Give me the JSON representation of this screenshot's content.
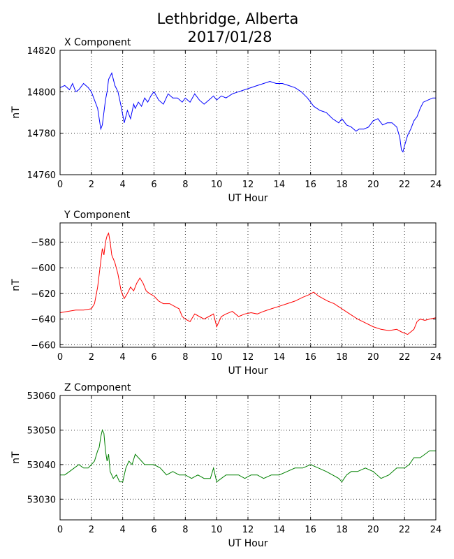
{
  "page": {
    "title_line1": "Lethbridge, Alberta",
    "title_line2": "2017/01/28"
  },
  "chart_data": [
    {
      "type": "line",
      "title": "X Component",
      "xlabel": "UT Hour",
      "ylabel": "nT",
      "xlim": [
        0,
        24
      ],
      "ylim": [
        14760,
        14820
      ],
      "xticks": [
        0,
        2,
        4,
        6,
        8,
        10,
        12,
        14,
        16,
        18,
        20,
        22,
        24
      ],
      "yticks": [
        14760,
        14780,
        14800,
        14820
      ],
      "grid": true,
      "color": "#0000ff",
      "series": [
        {
          "x": [
            0,
            0.3,
            0.6,
            0.8,
            1.0,
            1.2,
            1.5,
            1.8,
            2.0,
            2.2,
            2.4,
            2.6,
            2.7,
            2.9,
            3.0,
            3.1,
            3.3,
            3.5,
            3.7,
            3.9,
            4.1,
            4.3,
            4.5,
            4.7,
            4.8,
            5.0,
            5.2,
            5.4,
            5.6,
            5.8,
            6.0,
            6.3,
            6.6,
            6.9,
            7.2,
            7.5,
            7.8,
            8.0,
            8.3,
            8.6,
            8.9,
            9.2,
            9.5,
            9.8,
            10.0,
            10.3,
            10.6,
            11.0,
            11.4,
            11.8,
            12.2,
            12.6,
            13.0,
            13.4,
            13.8,
            14.2,
            14.6,
            15.0,
            15.4,
            15.8,
            16.2,
            16.6,
            17.0,
            17.4,
            17.8,
            18.0,
            18.3,
            18.6,
            18.9,
            19.1,
            19.4,
            19.7,
            20.0,
            20.3,
            20.6,
            20.9,
            21.2,
            21.5,
            21.7,
            21.8,
            21.9,
            22.0,
            22.2,
            22.4,
            22.6,
            22.8,
            23.0,
            23.2,
            23.5,
            23.8,
            24.0
          ],
          "y": [
            14802,
            14803,
            14801,
            14804,
            14800,
            14801,
            14804,
            14802,
            14800,
            14796,
            14792,
            14782,
            14784,
            14796,
            14800,
            14806,
            14809,
            14803,
            14800,
            14793,
            14785,
            14791,
            14787,
            14794,
            14792,
            14795,
            14793,
            14797,
            14795,
            14798,
            14800,
            14796,
            14794,
            14799,
            14797,
            14797,
            14795,
            14797,
            14795,
            14799,
            14796,
            14794,
            14796,
            14798,
            14796,
            14798,
            14797,
            14799,
            14800,
            14801,
            14802,
            14803,
            14804,
            14805,
            14804,
            14804,
            14803,
            14802,
            14800,
            14797,
            14793,
            14791,
            14790,
            14787,
            14785,
            14787,
            14784,
            14783,
            14781,
            14782,
            14782,
            14783,
            14786,
            14787,
            14784,
            14785,
            14785,
            14783,
            14778,
            14772,
            14771,
            14774,
            14779,
            14782,
            14786,
            14788,
            14792,
            14795,
            14796,
            14797,
            14797
          ]
        }
      ]
    },
    {
      "type": "line",
      "title": "Y Component",
      "xlabel": "UT Hour",
      "ylabel": "nT",
      "xlim": [
        0,
        24
      ],
      "ylim": [
        -662,
        -565
      ],
      "xticks": [
        0,
        2,
        4,
        6,
        8,
        10,
        12,
        14,
        16,
        18,
        20,
        22,
        24
      ],
      "yticks": [
        -660,
        -640,
        -620,
        -600,
        -580
      ],
      "grid": true,
      "color": "#ff0000",
      "series": [
        {
          "x": [
            0,
            0.5,
            1.0,
            1.5,
            2.0,
            2.2,
            2.4,
            2.6,
            2.7,
            2.8,
            2.9,
            3.0,
            3.1,
            3.2,
            3.3,
            3.5,
            3.7,
            3.9,
            4.1,
            4.3,
            4.5,
            4.7,
            4.9,
            5.1,
            5.3,
            5.5,
            5.7,
            6.0,
            6.3,
            6.6,
            7.0,
            7.3,
            7.6,
            7.8,
            8.0,
            8.3,
            8.6,
            8.9,
            9.2,
            9.5,
            9.8,
            10.0,
            10.3,
            10.6,
            11.0,
            11.4,
            11.8,
            12.2,
            12.6,
            13.0,
            13.5,
            14.0,
            14.5,
            15.0,
            15.5,
            15.9,
            16.2,
            16.5,
            16.8,
            17.1,
            17.5,
            18.0,
            18.5,
            19.0,
            19.5,
            20.0,
            20.5,
            21.0,
            21.5,
            21.8,
            22.0,
            22.2,
            22.4,
            22.6,
            22.8,
            23.0,
            23.3,
            23.6,
            24.0
          ],
          "y": [
            -635,
            -634,
            -633,
            -633,
            -632,
            -628,
            -615,
            -595,
            -585,
            -590,
            -580,
            -575,
            -573,
            -580,
            -590,
            -596,
            -605,
            -618,
            -624,
            -620,
            -615,
            -618,
            -612,
            -608,
            -612,
            -618,
            -620,
            -622,
            -626,
            -628,
            -628,
            -630,
            -632,
            -638,
            -640,
            -642,
            -636,
            -638,
            -640,
            -638,
            -636,
            -646,
            -638,
            -636,
            -634,
            -638,
            -636,
            -635,
            -636,
            -634,
            -632,
            -630,
            -628,
            -626,
            -623,
            -621,
            -619,
            -622,
            -624,
            -626,
            -628,
            -632,
            -636,
            -640,
            -643,
            -646,
            -648,
            -649,
            -648,
            -650,
            -651,
            -652,
            -650,
            -648,
            -642,
            -640,
            -641,
            -640,
            -639
          ]
        }
      ]
    },
    {
      "type": "line",
      "title": "Z Component",
      "xlabel": "UT Hour",
      "ylabel": "nT",
      "xlim": [
        0,
        24
      ],
      "ylim": [
        53024,
        53060
      ],
      "xticks": [
        0,
        2,
        4,
        6,
        8,
        10,
        12,
        14,
        16,
        18,
        20,
        22,
        24
      ],
      "yticks": [
        53030,
        53040,
        53050,
        53060
      ],
      "grid": true,
      "color": "#008000",
      "series": [
        {
          "x": [
            0,
            0.3,
            0.6,
            0.9,
            1.2,
            1.5,
            1.8,
            2.0,
            2.2,
            2.4,
            2.5,
            2.6,
            2.7,
            2.8,
            2.9,
            3.0,
            3.1,
            3.2,
            3.4,
            3.6,
            3.8,
            4.0,
            4.2,
            4.4,
            4.6,
            4.8,
            5.0,
            5.2,
            5.4,
            5.6,
            6.0,
            6.4,
            6.8,
            7.2,
            7.6,
            8.0,
            8.4,
            8.8,
            9.2,
            9.6,
            9.8,
            10.0,
            10.3,
            10.6,
            11.0,
            11.4,
            11.8,
            12.2,
            12.6,
            13.0,
            13.5,
            14.0,
            14.5,
            15.0,
            15.5,
            16.0,
            16.5,
            17.0,
            17.4,
            17.8,
            18.0,
            18.3,
            18.6,
            19.0,
            19.5,
            20.0,
            20.5,
            21.0,
            21.5,
            22.0,
            22.3,
            22.6,
            23.0,
            23.3,
            23.6,
            24.0
          ],
          "y": [
            53037,
            53037,
            53038,
            53039,
            53040,
            53039,
            53039,
            53040,
            53041,
            53044,
            53045,
            53048,
            53050,
            53049,
            53044,
            53041,
            53043,
            53038,
            53036,
            53037,
            53035,
            53035,
            53039,
            53041,
            53040,
            53043,
            53042,
            53041,
            53040,
            53040,
            53040,
            53039,
            53037,
            53038,
            53037,
            53037,
            53036,
            53037,
            53036,
            53036,
            53039,
            53035,
            53036,
            53037,
            53037,
            53037,
            53036,
            53037,
            53037,
            53036,
            53037,
            53037,
            53038,
            53039,
            53039,
            53040,
            53039,
            53038,
            53037,
            53036,
            53035,
            53037,
            53038,
            53038,
            53039,
            53038,
            53036,
            53037,
            53039,
            53039,
            53040,
            53042,
            53042,
            53043,
            53044,
            53044
          ]
        }
      ]
    }
  ]
}
